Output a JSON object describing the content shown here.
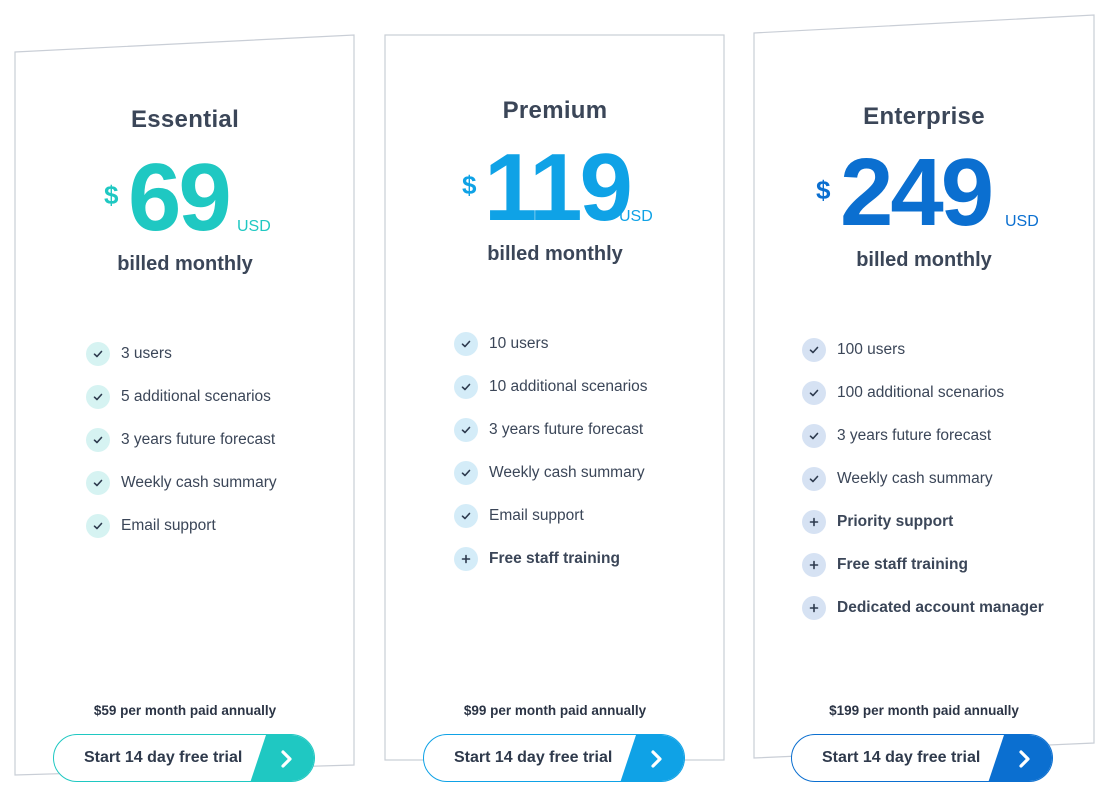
{
  "plans": [
    {
      "name": "Essential",
      "currency_symbol": "$",
      "price": "69",
      "currency_code": "USD",
      "billing": "billed monthly",
      "accent": "#1fc8c2",
      "icon_bg": "#d6f3f2",
      "features": [
        {
          "label": "3 users",
          "icon": "check-icon",
          "bold": false
        },
        {
          "label": "5 additional scenarios",
          "icon": "check-icon",
          "bold": false
        },
        {
          "label": "3 years future forecast",
          "icon": "check-icon",
          "bold": false
        },
        {
          "label": "Weekly cash summary",
          "icon": "check-icon",
          "bold": false
        },
        {
          "label": "Email support",
          "icon": "check-icon",
          "bold": false
        }
      ],
      "annual_note": "$59 per month paid annually",
      "cta_label": "Start 14 day free trial",
      "cta_icon": "chevron-right-icon"
    },
    {
      "name": "Premium",
      "currency_symbol": "$",
      "price": "119",
      "currency_code": "USD",
      "billing": "billed monthly",
      "accent": "#0fa2e6",
      "icon_bg": "#d4ecf8",
      "features": [
        {
          "label": "10 users",
          "icon": "check-icon",
          "bold": false
        },
        {
          "label": "10 additional scenarios",
          "icon": "check-icon",
          "bold": false
        },
        {
          "label": "3 years future forecast",
          "icon": "check-icon",
          "bold": false
        },
        {
          "label": "Weekly cash summary",
          "icon": "check-icon",
          "bold": false
        },
        {
          "label": "Email support",
          "icon": "check-icon",
          "bold": false
        },
        {
          "label": "Free staff training",
          "icon": "plus-icon",
          "bold": true
        }
      ],
      "annual_note": "$99 per month paid annually",
      "cta_label": "Start 14 day free trial",
      "cta_icon": "chevron-right-icon"
    },
    {
      "name": "Enterprise",
      "currency_symbol": "$",
      "price": "249",
      "currency_code": "USD",
      "billing": "billed monthly",
      "accent": "#0b6fd0",
      "icon_bg": "#d6e2f3",
      "features": [
        {
          "label": "100 users",
          "icon": "check-icon",
          "bold": false
        },
        {
          "label": "100 additional scenarios",
          "icon": "check-icon",
          "bold": false
        },
        {
          "label": "3 years future forecast",
          "icon": "check-icon",
          "bold": false
        },
        {
          "label": "Weekly cash summary",
          "icon": "check-icon",
          "bold": false
        },
        {
          "label": "Priority support",
          "icon": "plus-icon",
          "bold": true
        },
        {
          "label": "Free staff training",
          "icon": "plus-icon",
          "bold": true
        },
        {
          "label": "Dedicated account manager",
          "icon": "plus-icon",
          "bold": true
        }
      ],
      "annual_note": "$199 per month paid annually",
      "cta_label": "Start 14 day free trial",
      "cta_icon": "chevron-right-icon"
    }
  ]
}
